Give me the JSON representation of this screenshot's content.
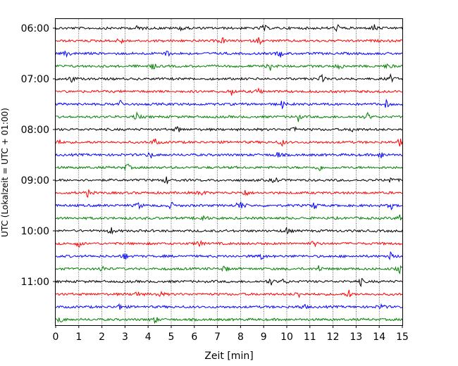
{
  "chart_data": {
    "type": "line",
    "title": "",
    "xlabel": "Zeit  [min]",
    "ylabel": "UTC (Lokalzeit = UTC + 01:00)",
    "xlim": [
      0,
      15
    ],
    "x_ticks": [
      "0",
      "1",
      "2",
      "3",
      "4",
      "5",
      "6",
      "7",
      "8",
      "9",
      "10",
      "11",
      "12",
      "13",
      "14",
      "15"
    ],
    "y_ticks": [
      "06:00",
      "07:00",
      "08:00",
      "09:00",
      "10:00",
      "11:00"
    ],
    "vertical_grid": true,
    "trace_colors": [
      "#000000",
      "#ff0000",
      "#0000ff",
      "#008000"
    ],
    "traces": [
      {
        "start": "06:00",
        "events": [
          3.6,
          5.5,
          9.0,
          12.2,
          13.8
        ]
      },
      {
        "start": "06:15",
        "events": [
          2.8,
          7.2,
          8.8
        ]
      },
      {
        "start": "06:30",
        "events": [
          0.5,
          4.8,
          9.7
        ]
      },
      {
        "start": "06:45",
        "events": [
          4.2,
          9.3,
          12.3,
          14.4
        ]
      },
      {
        "start": "07:00",
        "events": [
          0.7,
          11.5,
          14.5
        ]
      },
      {
        "start": "07:15",
        "events": [
          7.6,
          8.8
        ]
      },
      {
        "start": "07:30",
        "events": [
          2.8,
          9.8,
          14.3
        ]
      },
      {
        "start": "07:45",
        "events": [
          3.5,
          10.5,
          13.5
        ]
      },
      {
        "start": "08:00",
        "events": [
          5.3,
          10.3,
          12.9
        ]
      },
      {
        "start": "08:15",
        "events": [
          0.1,
          4.3,
          9.8,
          14.9
        ]
      },
      {
        "start": "08:30",
        "events": [
          4.1,
          9.6,
          14.1
        ]
      },
      {
        "start": "08:45",
        "events": [
          3.1,
          11.4
        ]
      },
      {
        "start": "09:00",
        "events": [
          4.8,
          9.5,
          14.5
        ]
      },
      {
        "start": "09:15",
        "events": [
          1.4,
          6.3,
          8.2
        ]
      },
      {
        "start": "09:30",
        "events": [
          3.6,
          5.0,
          7.9,
          8.1,
          11.2,
          14.5
        ]
      },
      {
        "start": "09:45",
        "events": [
          6.4,
          14.9
        ]
      },
      {
        "start": "10:00",
        "events": [
          2.4,
          10.0
        ]
      },
      {
        "start": "10:15",
        "events": [
          1.0,
          6.2,
          11.2
        ]
      },
      {
        "start": "10:30",
        "events": [
          3.0,
          8.9,
          14.5
        ]
      },
      {
        "start": "10:45",
        "events": [
          2.0,
          7.3,
          11.4,
          14.9
        ]
      },
      {
        "start": "11:00",
        "events": [
          9.3,
          9.9,
          13.2
        ]
      },
      {
        "start": "11:15",
        "events": [
          3.5,
          4.5,
          10.5,
          12.7
        ]
      },
      {
        "start": "11:30",
        "events": [
          2.8,
          10.7,
          14.1
        ]
      },
      {
        "start": "11:45",
        "events": [
          0.2,
          4.3
        ]
      }
    ]
  }
}
